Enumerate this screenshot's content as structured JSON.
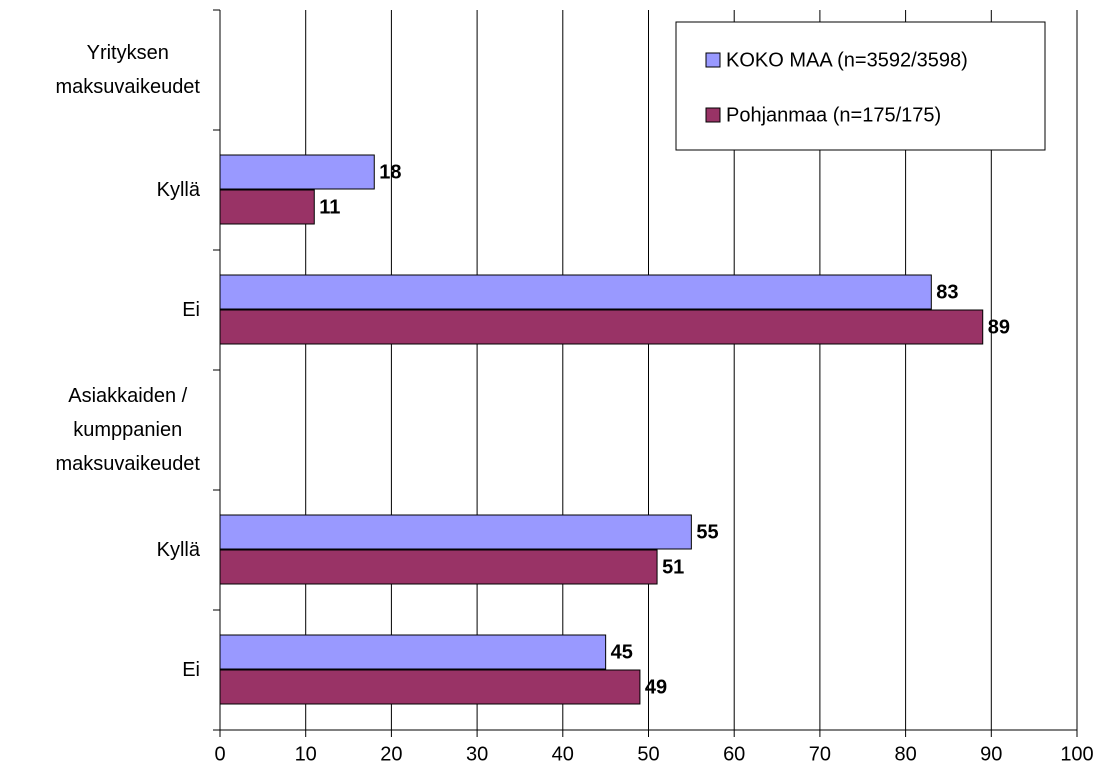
{
  "chart_data": {
    "type": "barh",
    "categories": [
      "Yrityksen\nmaksuvaikeudet",
      "Kyllä",
      "Ei",
      "Asiakkaiden /\nkumppanien\nmaksuvaikeudet",
      "Kyllä",
      "Ei"
    ],
    "series": [
      {
        "name": "KOKO MAA (n=3592/3598)",
        "color": "#9999ff",
        "values": [
          null,
          18,
          83,
          null,
          55,
          45
        ]
      },
      {
        "name": "Pohjanmaa (n=175/175)",
        "color": "#993366",
        "values": [
          null,
          11,
          89,
          null,
          51,
          49
        ]
      }
    ],
    "xlim": [
      0,
      100
    ],
    "xticks": [
      0,
      10,
      20,
      30,
      40,
      50,
      60,
      70,
      80,
      90,
      100
    ],
    "grid": true,
    "legend": "upper right"
  }
}
